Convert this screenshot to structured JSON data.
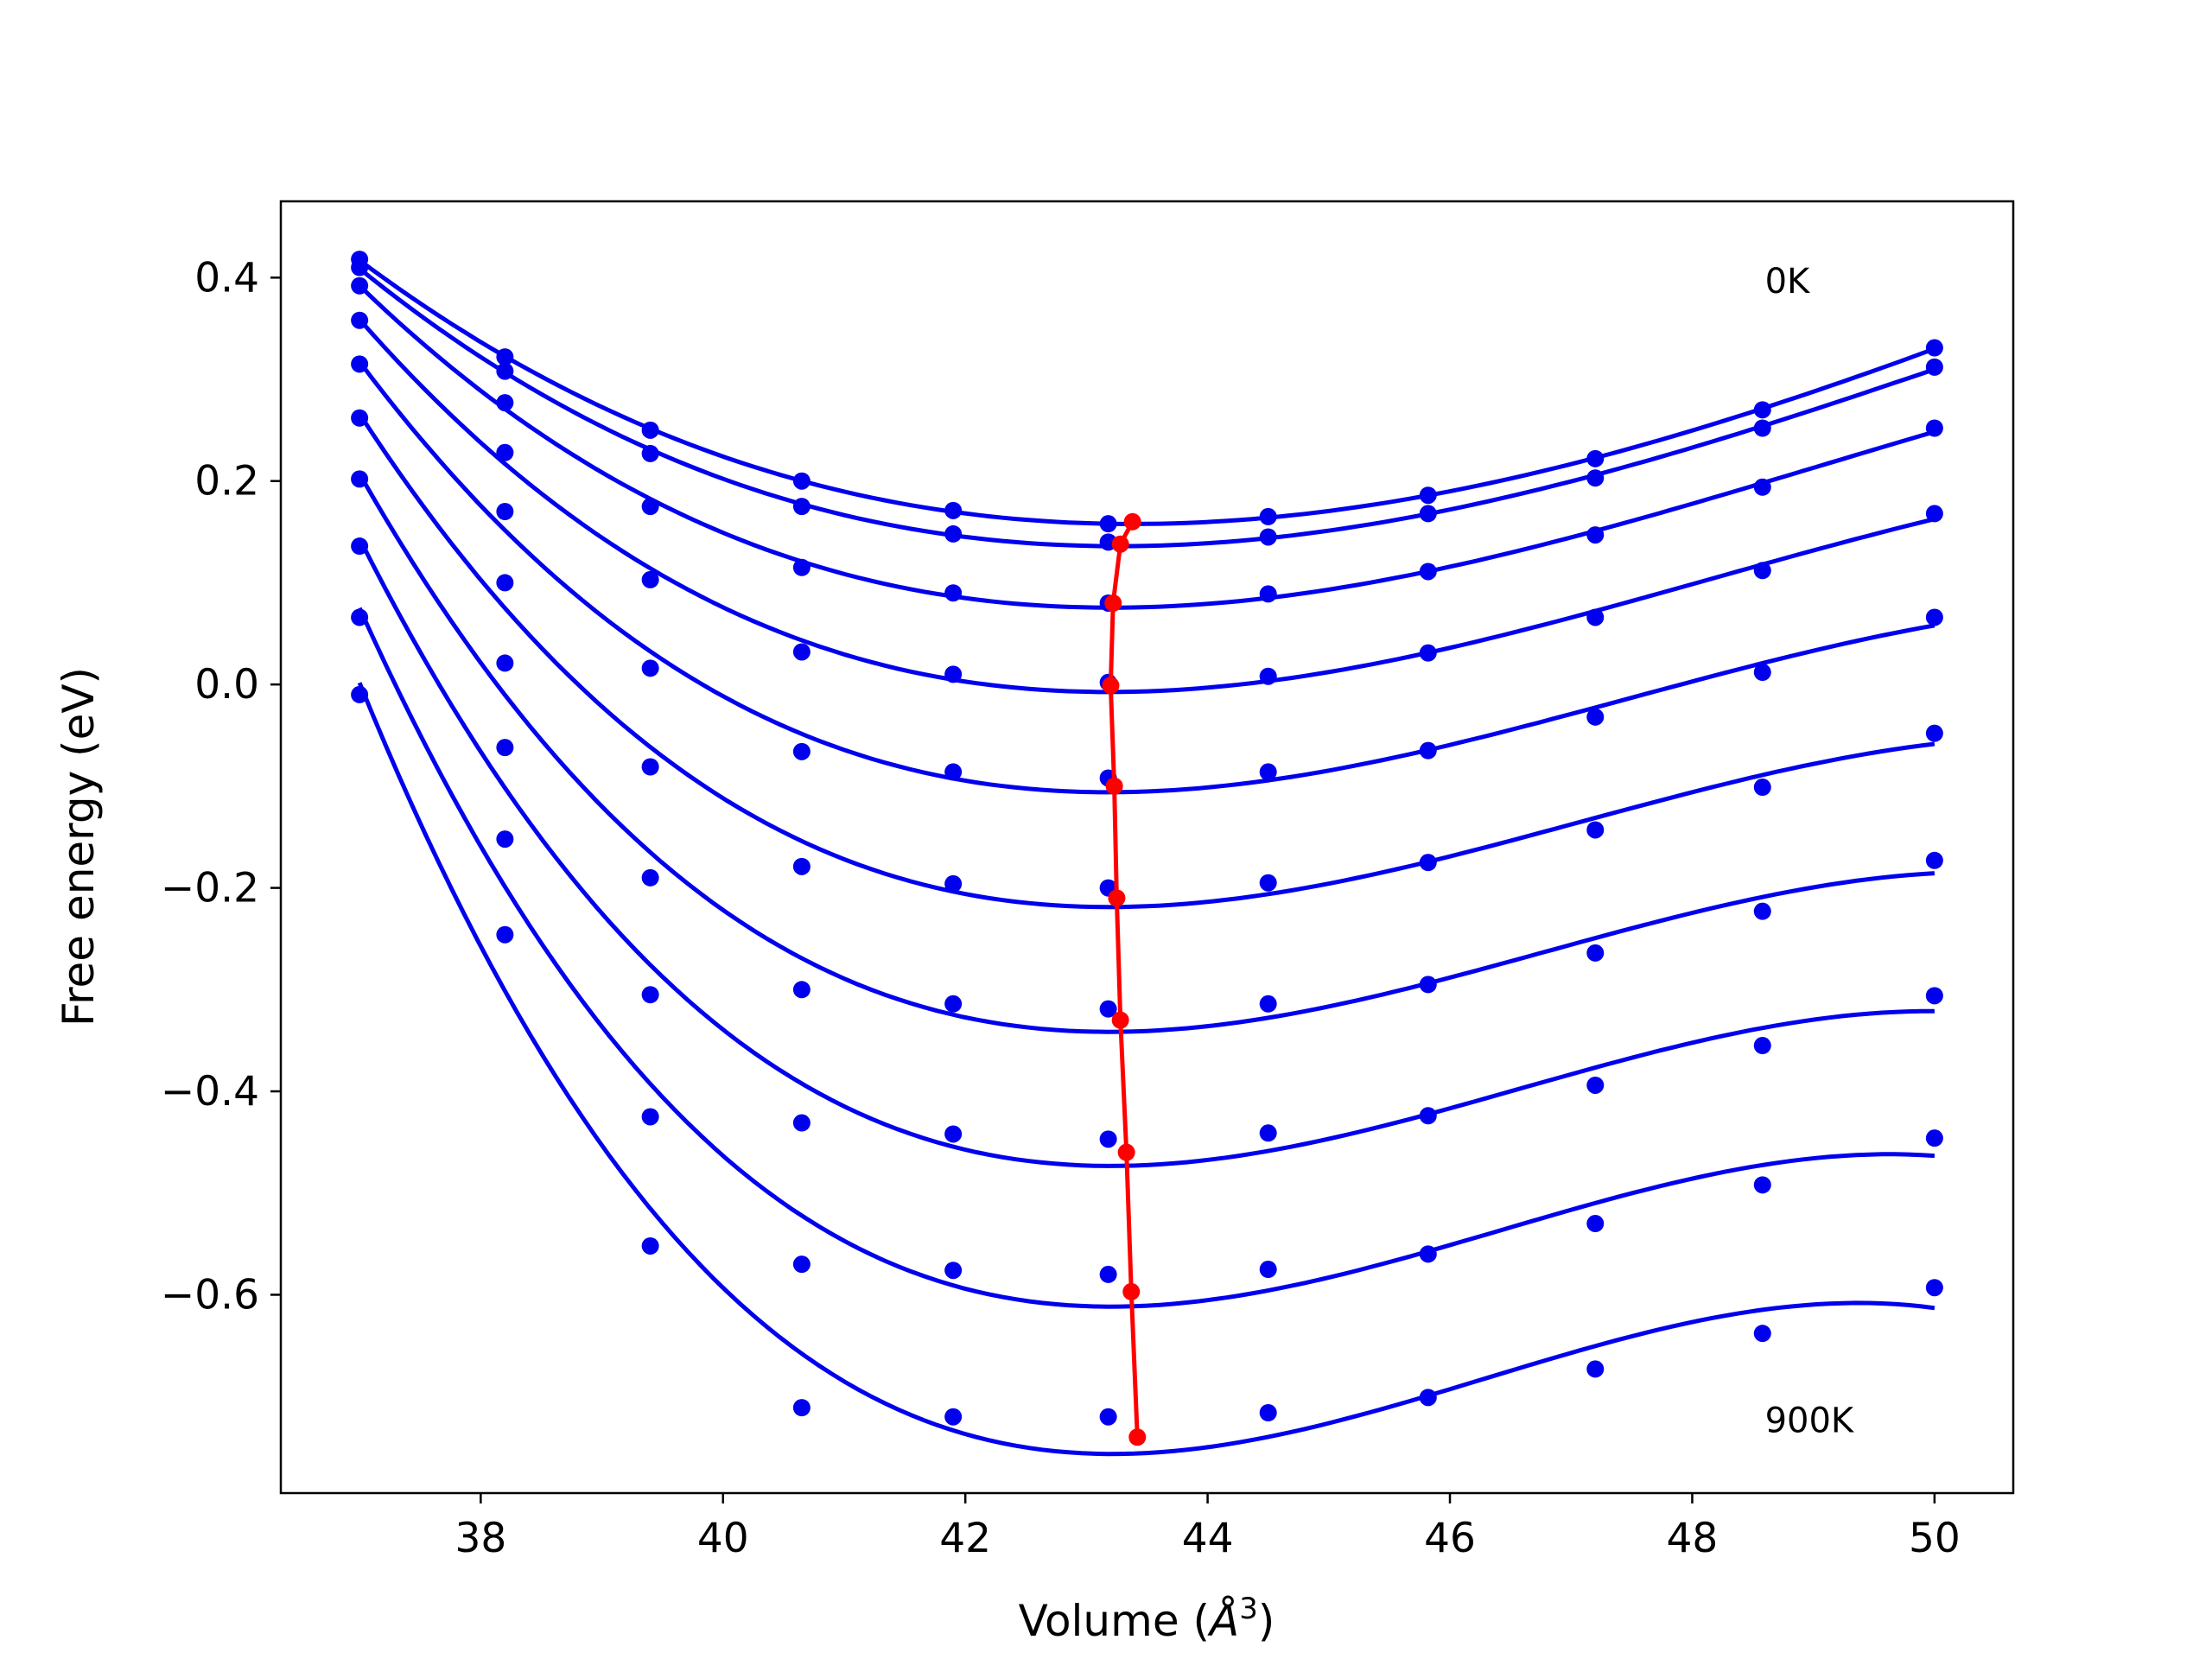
{
  "chart_data": {
    "type": "line",
    "xlabel_main": "Volume (",
    "xlabel_sym": "Å",
    "xlabel_exp": "3",
    "xlabel_close": ")",
    "ylabel": "Free energy (eV)",
    "xlim": [
      36.35,
      50.65
    ],
    "ylim": [
      -0.795,
      0.475
    ],
    "xticks": [
      38,
      40,
      42,
      44,
      46,
      48,
      50
    ],
    "yticks": [
      -0.6,
      -0.4,
      -0.2,
      0.0,
      0.2,
      0.4
    ],
    "ytick_labels": [
      "−0.6",
      "−0.4",
      "−0.2",
      "0.0",
      "0.2",
      "0.4"
    ],
    "xtick_labels": [
      "38",
      "40",
      "42",
      "44",
      "46",
      "48",
      "50"
    ],
    "annotations": [
      {
        "text": "0K",
        "x": 48.6,
        "y": 0.385
      },
      {
        "text": "900K",
        "x": 48.6,
        "y": -0.735
      }
    ],
    "colors": {
      "curves": "#0000ee",
      "points": "#0000ee",
      "minima": "#ff0000"
    },
    "x_points": [
      37.0,
      38.2,
      39.4,
      40.65,
      41.9,
      43.18,
      44.5,
      45.82,
      47.2,
      48.58,
      50.0
    ],
    "series": [
      {
        "y": [
          0.418,
          0.322,
          0.25,
          0.2,
          0.171,
          0.158,
          0.165,
          0.186,
          0.222,
          0.27,
          0.331
        ],
        "min": [
          43.38,
          0.16
        ]
      },
      {
        "y": [
          0.41,
          0.308,
          0.227,
          0.175,
          0.148,
          0.14,
          0.145,
          0.168,
          0.203,
          0.252,
          0.312
        ],
        "min": [
          43.28,
          0.138
        ]
      },
      {
        "y": [
          0.392,
          0.277,
          0.175,
          0.115,
          0.09,
          0.08,
          0.089,
          0.111,
          0.147,
          0.194,
          0.252
        ],
        "min": [
          43.22,
          0.08
        ]
      },
      {
        "y": [
          0.358,
          0.228,
          0.103,
          0.032,
          0.01,
          0.002,
          0.008,
          0.031,
          0.066,
          0.112,
          0.168
        ],
        "min": [
          43.2,
          -0.001
        ]
      },
      {
        "y": [
          0.315,
          0.17,
          0.016,
          -0.066,
          -0.086,
          -0.092,
          -0.086,
          -0.065,
          -0.032,
          0.012,
          0.066
        ],
        "min": [
          43.23,
          -0.1
        ]
      },
      {
        "y": [
          0.262,
          0.1,
          -0.081,
          -0.179,
          -0.196,
          -0.2,
          -0.195,
          -0.175,
          -0.143,
          -0.101,
          -0.048
        ],
        "min": [
          43.25,
          -0.21
        ]
      },
      {
        "y": [
          0.202,
          0.021,
          -0.19,
          -0.3,
          -0.314,
          -0.319,
          -0.314,
          -0.295,
          -0.264,
          -0.223,
          -0.173
        ],
        "min": [
          43.28,
          -0.33
        ]
      },
      {
        "y": [
          0.136,
          -0.062,
          -0.305,
          -0.431,
          -0.442,
          -0.447,
          -0.441,
          -0.424,
          -0.394,
          -0.355,
          -0.306
        ],
        "min": [
          43.33,
          -0.46
        ]
      },
      {
        "y": [
          0.066,
          -0.152,
          -0.425,
          -0.57,
          -0.576,
          -0.58,
          -0.575,
          -0.56,
          -0.53,
          -0.492,
          -0.446
        ],
        "min": [
          43.37,
          -0.597
        ]
      },
      {
        "y": [
          -0.01,
          -0.246,
          -0.552,
          -0.711,
          -0.72,
          -0.72,
          -0.716,
          -0.701,
          -0.673,
          -0.638,
          -0.593
        ],
        "min": [
          43.42,
          -0.74
        ]
      }
    ]
  }
}
